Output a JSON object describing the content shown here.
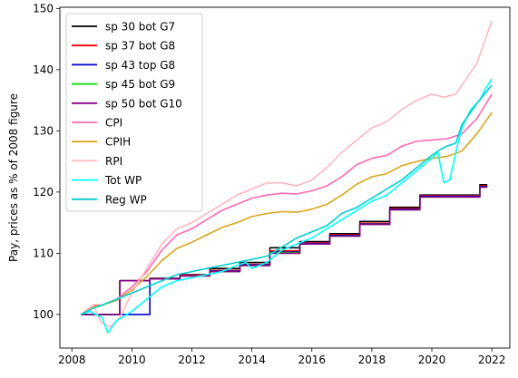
{
  "chart_data": {
    "type": "line",
    "title": "",
    "xlabel": "",
    "ylabel": "Pay, prices as % of 2008 figure",
    "xlim": [
      2007.6,
      2022.6
    ],
    "ylim": [
      94.5,
      150.2
    ],
    "xticks": [
      2008,
      2010,
      2012,
      2014,
      2016,
      2018,
      2020,
      2022
    ],
    "xtick_labels": [
      "2008",
      "2010",
      "2012",
      "2014",
      "2016",
      "2018",
      "2020",
      "2022"
    ],
    "yticks": [
      100,
      110,
      120,
      130,
      140,
      150
    ],
    "ytick_labels": [
      "100",
      "110",
      "120",
      "130",
      "140",
      "150"
    ],
    "grid": false,
    "legend_position": "top-left",
    "series": [
      {
        "name": "sp 30 bot G7",
        "color": "#000000",
        "style": "step",
        "x": [
          2008.3,
          2009.6,
          2010.6,
          2011.6,
          2012.6,
          2013.6,
          2014.6,
          2015.6,
          2016.6,
          2017.6,
          2018.6,
          2019.6,
          2021.6,
          2021.85
        ],
        "y": [
          100,
          105.5,
          105.9,
          106.5,
          107.5,
          108.5,
          110.9,
          111.9,
          113.2,
          115.2,
          117.5,
          119.5,
          121.2,
          121.2
        ]
      },
      {
        "name": "sp 37 bot G8",
        "color": "#ff0000",
        "style": "step",
        "x": [
          2008.3,
          2009.6,
          2010.6,
          2011.6,
          2012.6,
          2013.6,
          2014.6,
          2015.6,
          2016.6,
          2017.6,
          2018.6,
          2019.6,
          2021.6,
          2021.85
        ],
        "y": [
          100,
          105.5,
          105.8,
          106.4,
          107.2,
          108.2,
          110.4,
          111.7,
          113.0,
          114.9,
          117.3,
          119.4,
          121.0,
          121.0
        ]
      },
      {
        "name": "sp 43 top G8",
        "color": "#0000cc",
        "style": "step",
        "x": [
          2008.3,
          2009.6,
          2010.6,
          2011.6,
          2012.6,
          2013.6,
          2014.6,
          2015.6,
          2016.6,
          2017.6,
          2018.6,
          2019.6,
          2021.6,
          2021.85
        ],
        "y": [
          100,
          100,
          105.8,
          106.3,
          107.1,
          108.1,
          110.2,
          111.6,
          112.9,
          114.8,
          117.2,
          119.3,
          120.9,
          120.9
        ]
      },
      {
        "name": "sp 45 bot G9",
        "color": "#00dd00",
        "style": "step",
        "x": [
          2008.3,
          2009.6,
          2010.6,
          2011.6,
          2012.6,
          2013.6,
          2014.6,
          2015.6,
          2016.6,
          2017.6,
          2018.6,
          2019.6,
          2021.6,
          2021.85
        ],
        "y": [
          100,
          105.5,
          105.8,
          106.3,
          107.0,
          108.0,
          110.1,
          111.5,
          112.8,
          114.7,
          117.1,
          119.2,
          120.8,
          120.8
        ]
      },
      {
        "name": "sp 50 bot G10",
        "color": "#880088",
        "style": "step",
        "x": [
          2008.3,
          2009.6,
          2010.6,
          2011.6,
          2012.6,
          2013.6,
          2014.6,
          2015.6,
          2016.6,
          2017.6,
          2018.6,
          2019.6,
          2021.6,
          2021.85
        ],
        "y": [
          100,
          105.5,
          105.8,
          106.3,
          107.0,
          108.0,
          110.0,
          111.5,
          112.8,
          114.7,
          117.1,
          119.2,
          120.8,
          120.8
        ]
      },
      {
        "name": "CPI",
        "color": "#ff69b4",
        "style": "line",
        "x": [
          2008.3,
          2008.7,
          2009.0,
          2009.5,
          2010.0,
          2010.5,
          2011.0,
          2011.5,
          2012.0,
          2012.5,
          2013.0,
          2013.5,
          2014.0,
          2014.5,
          2015.0,
          2015.5,
          2016.0,
          2016.5,
          2017.0,
          2017.5,
          2018.0,
          2018.5,
          2019.0,
          2019.5,
          2020.0,
          2020.5,
          2021.0,
          2021.5,
          2022.0
        ],
        "y": [
          100,
          101.5,
          101.5,
          102.5,
          104.5,
          107.0,
          110.5,
          113.0,
          114.0,
          115.5,
          117.0,
          118.0,
          119.0,
          119.5,
          119.8,
          119.7,
          120.2,
          121.0,
          122.5,
          124.5,
          125.5,
          126.0,
          127.5,
          128.3,
          128.5,
          128.7,
          129.5,
          132.0,
          136.0
        ]
      },
      {
        "name": "CPIH",
        "color": "#daa520",
        "style": "line",
        "x": [
          2008.3,
          2008.7,
          2009.0,
          2009.5,
          2010.0,
          2010.5,
          2011.0,
          2011.5,
          2012.0,
          2012.5,
          2013.0,
          2013.5,
          2014.0,
          2014.5,
          2015.0,
          2015.5,
          2016.0,
          2016.5,
          2017.0,
          2017.5,
          2018.0,
          2018.5,
          2019.0,
          2019.5,
          2020.0,
          2020.5,
          2021.0,
          2021.5,
          2022.0
        ],
        "y": [
          100,
          101.3,
          101.5,
          102.3,
          104.0,
          106.2,
          108.8,
          110.8,
          111.8,
          113.0,
          114.2,
          115.0,
          116.0,
          116.5,
          116.8,
          116.7,
          117.2,
          118.0,
          119.5,
          121.3,
          122.5,
          123.0,
          124.3,
          125.0,
          125.5,
          125.8,
          126.7,
          129.5,
          133.0
        ]
      },
      {
        "name": "RPI",
        "color": "#ffb6c1",
        "style": "line",
        "x": [
          2008.3,
          2008.7,
          2009.0,
          2009.3,
          2009.6,
          2010.0,
          2010.5,
          2011.0,
          2011.5,
          2012.0,
          2012.5,
          2013.0,
          2013.5,
          2014.0,
          2014.5,
          2015.0,
          2015.5,
          2016.0,
          2016.5,
          2017.0,
          2017.5,
          2018.0,
          2018.5,
          2019.0,
          2019.5,
          2020.0,
          2020.4,
          2020.8,
          2021.0,
          2021.5,
          2022.0
        ],
        "y": [
          100,
          101.5,
          98.5,
          98.0,
          99.5,
          103.5,
          107.5,
          111.5,
          114.0,
          115.0,
          116.5,
          118.0,
          119.5,
          120.5,
          121.5,
          121.5,
          121.0,
          122.0,
          124.0,
          126.5,
          128.5,
          130.5,
          131.5,
          133.5,
          135.0,
          136.0,
          135.5,
          136.0,
          137.5,
          141.0,
          148.0
        ]
      },
      {
        "name": "Tot WP",
        "color": "#00ffff",
        "style": "line",
        "x": [
          2008.3,
          2008.6,
          2009.0,
          2009.2,
          2009.5,
          2010.0,
          2010.5,
          2011.0,
          2011.5,
          2012.0,
          2012.5,
          2013.0,
          2013.5,
          2013.8,
          2014.0,
          2014.5,
          2015.0,
          2015.5,
          2016.0,
          2016.5,
          2017.0,
          2017.5,
          2018.0,
          2018.5,
          2019.0,
          2019.5,
          2020.0,
          2020.2,
          2020.4,
          2020.6,
          2020.8,
          2021.0,
          2021.3,
          2021.6,
          2021.8,
          2022.0
        ],
        "y": [
          100,
          100.5,
          99.5,
          97.0,
          99.0,
          100.5,
          102.5,
          104.5,
          105.5,
          106.0,
          106.5,
          107.0,
          108.0,
          108.5,
          107.5,
          108.5,
          110.5,
          111.5,
          112.5,
          114.0,
          115.5,
          117.0,
          118.5,
          119.5,
          121.5,
          123.5,
          125.5,
          126.5,
          121.5,
          122.0,
          126.5,
          130.5,
          133.5,
          135.0,
          137.0,
          138.5
        ]
      },
      {
        "name": "Reg WP",
        "color": "#00ced1",
        "style": "line",
        "x": [
          2008.3,
          2008.7,
          2009.0,
          2009.5,
          2010.0,
          2010.5,
          2011.0,
          2011.5,
          2012.0,
          2012.5,
          2013.0,
          2013.5,
          2014.0,
          2014.5,
          2015.0,
          2015.5,
          2016.0,
          2016.5,
          2017.0,
          2017.5,
          2018.0,
          2018.5,
          2019.0,
          2019.5,
          2020.0,
          2020.3,
          2020.5,
          2020.8,
          2021.0,
          2021.5,
          2022.0
        ],
        "y": [
          100,
          101.0,
          101.5,
          102.5,
          103.5,
          104.5,
          105.5,
          106.5,
          107.0,
          107.5,
          108.0,
          108.5,
          109.0,
          109.5,
          111.0,
          112.5,
          113.5,
          114.5,
          116.5,
          117.5,
          119.0,
          120.5,
          122.0,
          124.0,
          126.0,
          127.0,
          127.5,
          128.0,
          131.0,
          134.5,
          137.5
        ]
      }
    ]
  }
}
